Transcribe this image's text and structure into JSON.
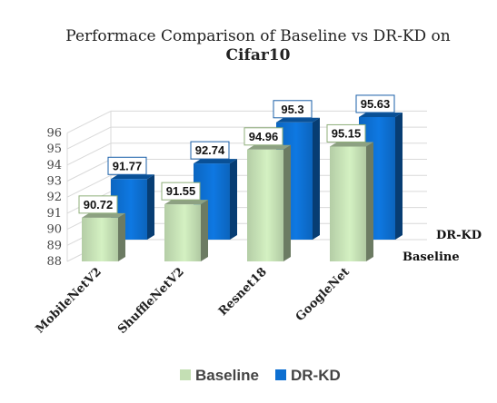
{
  "chart_data": {
    "type": "bar",
    "style": "3d-clustered-column",
    "title": "Performace Comparison of Baseline vs DR-KD on",
    "subtitle": "Cifar10",
    "categories": [
      "MobileNetV2",
      "ShuffleNetV2",
      "Resnet18",
      "GoogleNet"
    ],
    "series": [
      {
        "name": "Baseline",
        "values": [
          90.72,
          91.55,
          94.96,
          95.15
        ],
        "color": "#c4dfb4"
      },
      {
        "name": "DR-KD",
        "values": [
          91.77,
          92.74,
          95.3,
          95.63
        ],
        "color": "#0d6fd1"
      }
    ],
    "ylim": [
      88,
      96
    ],
    "yticks": [
      "88",
      "89",
      "90",
      "91",
      "92",
      "93",
      "94",
      "95",
      "96"
    ],
    "xlabel": "",
    "ylabel": "",
    "grid": true,
    "legend": "bottom"
  }
}
